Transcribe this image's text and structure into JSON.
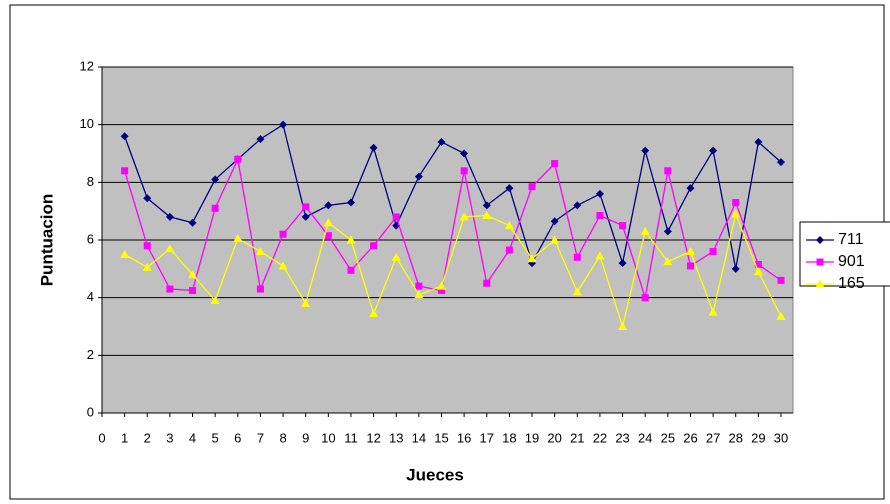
{
  "chart_data": {
    "type": "line",
    "xlabel": "Jueces",
    "ylabel": "Puntuacion",
    "x": [
      1,
      2,
      3,
      4,
      5,
      6,
      7,
      8,
      9,
      10,
      11,
      12,
      13,
      14,
      15,
      16,
      17,
      18,
      19,
      20,
      21,
      22,
      23,
      24,
      25,
      26,
      27,
      28,
      29,
      30
    ],
    "series": [
      {
        "name": "711",
        "color": "#000080",
        "marker": "diamond",
        "values": [
          9.6,
          7.45,
          6.8,
          6.6,
          8.1,
          8.8,
          9.5,
          10.0,
          6.8,
          7.2,
          7.3,
          9.2,
          6.5,
          8.2,
          9.4,
          9.0,
          7.2,
          7.8,
          5.2,
          6.65,
          7.2,
          7.6,
          5.2,
          9.1,
          6.3,
          7.8,
          9.1,
          5.0,
          9.4,
          8.7
        ]
      },
      {
        "name": "901",
        "color": "#ff00ff",
        "marker": "square",
        "values": [
          8.4,
          5.8,
          4.3,
          4.25,
          7.1,
          8.8,
          4.3,
          6.2,
          7.15,
          6.15,
          4.95,
          5.8,
          6.8,
          4.4,
          4.25,
          8.4,
          4.5,
          5.65,
          7.85,
          8.65,
          5.4,
          6.85,
          6.5,
          4.0,
          8.4,
          5.1,
          5.6,
          7.3,
          5.15,
          4.6
        ]
      },
      {
        "name": "165",
        "color": "#ffff00",
        "marker": "triangle",
        "values": [
          5.5,
          5.05,
          5.7,
          4.8,
          3.9,
          6.05,
          5.6,
          5.1,
          3.8,
          6.6,
          6.0,
          3.45,
          5.4,
          4.1,
          4.4,
          6.8,
          6.85,
          6.5,
          5.35,
          6.0,
          4.2,
          5.45,
          3.0,
          6.3,
          5.25,
          5.6,
          3.5,
          6.9,
          4.9,
          3.35
        ]
      }
    ],
    "xlim": [
      0,
      30
    ],
    "xticks": [
      0,
      1,
      2,
      3,
      4,
      5,
      6,
      7,
      8,
      9,
      10,
      11,
      12,
      13,
      14,
      15,
      16,
      17,
      18,
      19,
      20,
      21,
      22,
      23,
      24,
      25,
      26,
      27,
      28,
      29,
      30
    ],
    "ylim": [
      0,
      12
    ],
    "yticks": [
      0,
      2,
      4,
      6,
      8,
      10,
      12
    ],
    "grid": true,
    "legend": "right"
  }
}
